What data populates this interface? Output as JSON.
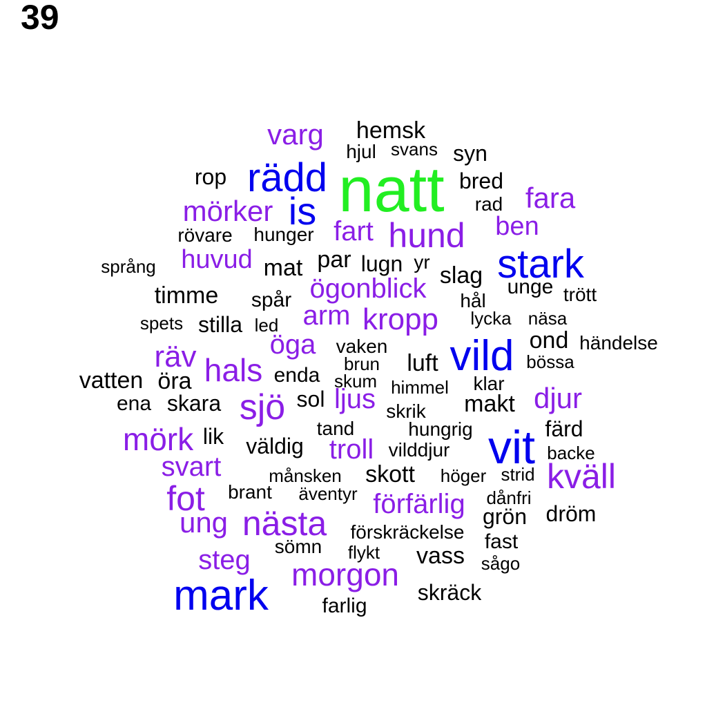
{
  "page_number": "39",
  "colors": {
    "largest": "#22ee22",
    "large": "#0000ee",
    "medium": "#8a1ee6",
    "small": "#000000"
  },
  "words": [
    {
      "text": "natt",
      "tier": "largest"
    },
    {
      "text": "rädd",
      "tier": "large"
    },
    {
      "text": "is",
      "tier": "large"
    },
    {
      "text": "stark",
      "tier": "large"
    },
    {
      "text": "vild",
      "tier": "large"
    },
    {
      "text": "vit",
      "tier": "large"
    },
    {
      "text": "mark",
      "tier": "large"
    },
    {
      "text": "varg",
      "tier": "medium"
    },
    {
      "text": "mörker",
      "tier": "medium"
    },
    {
      "text": "fara",
      "tier": "medium"
    },
    {
      "text": "fart",
      "tier": "medium"
    },
    {
      "text": "hund",
      "tier": "medium"
    },
    {
      "text": "ben",
      "tier": "medium"
    },
    {
      "text": "huvud",
      "tier": "medium"
    },
    {
      "text": "ögonblick",
      "tier": "medium"
    },
    {
      "text": "arm",
      "tier": "medium"
    },
    {
      "text": "kropp",
      "tier": "medium"
    },
    {
      "text": "öga",
      "tier": "medium"
    },
    {
      "text": "räv",
      "tier": "medium"
    },
    {
      "text": "hals",
      "tier": "medium"
    },
    {
      "text": "sjö",
      "tier": "medium"
    },
    {
      "text": "ljus",
      "tier": "medium"
    },
    {
      "text": "djur",
      "tier": "medium"
    },
    {
      "text": "mörk",
      "tier": "medium"
    },
    {
      "text": "troll",
      "tier": "medium"
    },
    {
      "text": "svart",
      "tier": "medium"
    },
    {
      "text": "kväll",
      "tier": "medium"
    },
    {
      "text": "fot",
      "tier": "medium"
    },
    {
      "text": "förfärlig",
      "tier": "medium"
    },
    {
      "text": "ung",
      "tier": "medium"
    },
    {
      "text": "nästa",
      "tier": "medium"
    },
    {
      "text": "steg",
      "tier": "medium"
    },
    {
      "text": "morgon",
      "tier": "medium"
    },
    {
      "text": "hemsk",
      "tier": "small"
    },
    {
      "text": "hjul",
      "tier": "small"
    },
    {
      "text": "svans",
      "tier": "small"
    },
    {
      "text": "syn",
      "tier": "small"
    },
    {
      "text": "rop",
      "tier": "small"
    },
    {
      "text": "bred",
      "tier": "small"
    },
    {
      "text": "rad",
      "tier": "small"
    },
    {
      "text": "rövare",
      "tier": "small"
    },
    {
      "text": "hunger",
      "tier": "small"
    },
    {
      "text": "språng",
      "tier": "small"
    },
    {
      "text": "mat",
      "tier": "small"
    },
    {
      "text": "par",
      "tier": "small"
    },
    {
      "text": "lugn",
      "tier": "small"
    },
    {
      "text": "yr",
      "tier": "small"
    },
    {
      "text": "slag",
      "tier": "small"
    },
    {
      "text": "timme",
      "tier": "small"
    },
    {
      "text": "unge",
      "tier": "small"
    },
    {
      "text": "trött",
      "tier": "small"
    },
    {
      "text": "spår",
      "tier": "small"
    },
    {
      "text": "hål",
      "tier": "small"
    },
    {
      "text": "spets",
      "tier": "small"
    },
    {
      "text": "stilla",
      "tier": "small"
    },
    {
      "text": "led",
      "tier": "small"
    },
    {
      "text": "lycka",
      "tier": "small"
    },
    {
      "text": "näsa",
      "tier": "small"
    },
    {
      "text": "ond",
      "tier": "small"
    },
    {
      "text": "händelse",
      "tier": "small"
    },
    {
      "text": "vaken",
      "tier": "small"
    },
    {
      "text": "brun",
      "tier": "small"
    },
    {
      "text": "luft",
      "tier": "small"
    },
    {
      "text": "bössa",
      "tier": "small"
    },
    {
      "text": "vatten",
      "tier": "small"
    },
    {
      "text": "öra",
      "tier": "small"
    },
    {
      "text": "enda",
      "tier": "small"
    },
    {
      "text": "skum",
      "tier": "small"
    },
    {
      "text": "himmel",
      "tier": "small"
    },
    {
      "text": "klar",
      "tier": "small"
    },
    {
      "text": "ena",
      "tier": "small"
    },
    {
      "text": "skara",
      "tier": "small"
    },
    {
      "text": "sol",
      "tier": "small"
    },
    {
      "text": "makt",
      "tier": "small"
    },
    {
      "text": "skrik",
      "tier": "small"
    },
    {
      "text": "tand",
      "tier": "small"
    },
    {
      "text": "hungrig",
      "tier": "small"
    },
    {
      "text": "färd",
      "tier": "small"
    },
    {
      "text": "lik",
      "tier": "small"
    },
    {
      "text": "väldig",
      "tier": "small"
    },
    {
      "text": "vilddjur",
      "tier": "small"
    },
    {
      "text": "backe",
      "tier": "small"
    },
    {
      "text": "månsken",
      "tier": "small"
    },
    {
      "text": "skott",
      "tier": "small"
    },
    {
      "text": "höger",
      "tier": "small"
    },
    {
      "text": "strid",
      "tier": "small"
    },
    {
      "text": "brant",
      "tier": "small"
    },
    {
      "text": "äventyr",
      "tier": "small"
    },
    {
      "text": "dånfri",
      "tier": "small"
    },
    {
      "text": "grön",
      "tier": "small"
    },
    {
      "text": "dröm",
      "tier": "small"
    },
    {
      "text": "förskräckelse",
      "tier": "small"
    },
    {
      "text": "fast",
      "tier": "small"
    },
    {
      "text": "sömn",
      "tier": "small"
    },
    {
      "text": "flykt",
      "tier": "small"
    },
    {
      "text": "vass",
      "tier": "small"
    },
    {
      "text": "sågo",
      "tier": "small"
    },
    {
      "text": "skräck",
      "tier": "small"
    },
    {
      "text": "farlig",
      "tier": "small"
    }
  ]
}
